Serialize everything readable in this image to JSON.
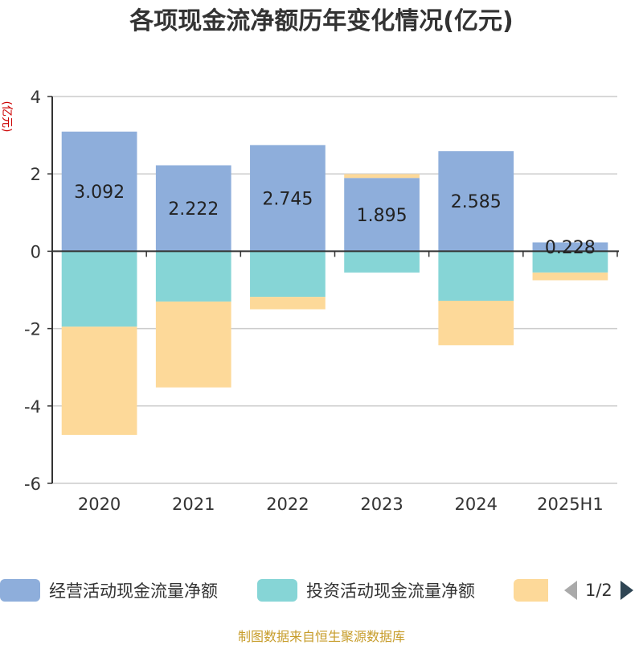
{
  "chart_data": {
    "type": "bar",
    "stacked": true,
    "title": "各项现金流净额历年变化情况(亿元)",
    "ylabel": "(亿元)",
    "categories": [
      "2020",
      "2021",
      "2022",
      "2023",
      "2024",
      "2025H1"
    ],
    "ylim": [
      -6,
      4
    ],
    "yticks": [
      4,
      2,
      0,
      -2,
      -4,
      -6
    ],
    "grid": true,
    "legend_position": "bottom",
    "series": [
      {
        "name": "经营活动现金流量净额",
        "color": "#8eaedb",
        "values": [
          3.092,
          2.222,
          2.745,
          1.895,
          2.585,
          0.228
        ],
        "labels": [
          "3.092",
          "2.222",
          "2.745",
          "1.895",
          "2.585",
          "0.228"
        ]
      },
      {
        "name": "投资活动现金流量净额",
        "color": "#86d5d6",
        "values": [
          -1.95,
          -1.3,
          -1.18,
          -0.55,
          -1.28,
          -0.55
        ]
      },
      {
        "name": "",
        "color": "#fdd999",
        "values": [
          -2.8,
          -2.22,
          -0.32,
          0.1,
          -1.15,
          -0.2
        ]
      }
    ]
  },
  "legend": {
    "items": [
      {
        "label": "经营活动现金流量净额",
        "color": "#8eaedb"
      },
      {
        "label": "投资活动现金流量净额",
        "color": "#86d5d6"
      },
      {
        "label": "",
        "color": "#fdd999"
      }
    ],
    "pager_text": "1/2",
    "prev_color": "#aaaaaa",
    "next_color": "#2f4554"
  },
  "footer": {
    "source_text": "制图数据来自恒生聚源数据库"
  }
}
